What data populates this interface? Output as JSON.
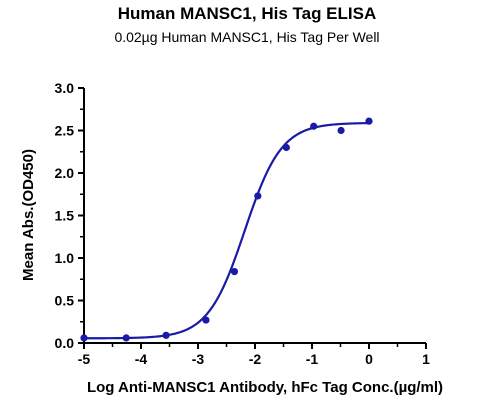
{
  "chart_data": {
    "type": "scatter",
    "title": "Human MANSC1, His Tag ELISA",
    "subtitle": "0.02µg Human MANSC1, His Tag Per Well",
    "xlabel": "Log  Anti-MANSC1 Antibody, hFc Tag Conc.(µg/ml)",
    "ylabel": "Mean Abs.(OD450)",
    "xlim": [
      -5,
      1
    ],
    "ylim": [
      0,
      3.0
    ],
    "xticks": [
      -5,
      -4,
      -3,
      -2,
      -1,
      0,
      1
    ],
    "yticks": [
      "0.0",
      "0.5",
      "1.0",
      "1.5",
      "2.0",
      "2.5",
      "3.0"
    ],
    "grid": false,
    "color": "#1a1aa8",
    "series": [
      {
        "x": [
          -5.0,
          -4.26,
          -3.56,
          -2.86,
          -2.36,
          -1.95,
          -1.45,
          -0.97,
          -0.49,
          0.0
        ],
        "y": [
          0.06,
          0.06,
          0.09,
          0.27,
          0.84,
          1.73,
          2.3,
          2.55,
          2.5,
          2.61
        ]
      }
    ],
    "fit": {
      "type": "4PL",
      "bottom": 0.055,
      "top": 2.59,
      "logEC50": -2.18,
      "hill": 1.35
    }
  }
}
